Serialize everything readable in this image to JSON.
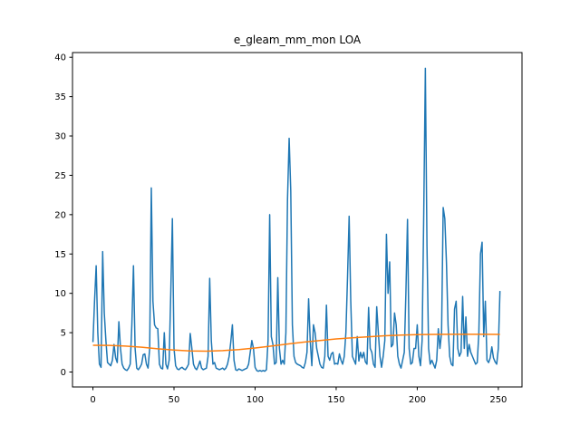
{
  "chart_data": {
    "type": "line",
    "title": "e_gleam_mm_mon LOA",
    "xlabel": "",
    "ylabel": "",
    "xlim": [
      -12.6,
      264.6
    ],
    "ylim": [
      -1.9,
      40.6
    ],
    "xticks": [
      0,
      50,
      100,
      150,
      200,
      250
    ],
    "yticks": [
      0,
      5,
      10,
      15,
      20,
      25,
      30,
      35,
      40
    ],
    "grid": false,
    "series": [
      {
        "color": "#1f77b4",
        "points": [
          [
            0,
            3.8
          ],
          [
            1,
            9
          ],
          [
            2,
            13.5
          ],
          [
            3,
            5
          ],
          [
            4,
            1
          ],
          [
            5,
            0.6
          ],
          [
            6,
            15.3
          ],
          [
            7,
            7.5
          ],
          [
            8,
            4
          ],
          [
            9,
            1.2
          ],
          [
            10,
            1
          ],
          [
            11,
            0.8
          ],
          [
            12,
            1.5
          ],
          [
            13,
            3.5
          ],
          [
            14,
            1.8
          ],
          [
            15,
            1.2
          ],
          [
            16,
            6.4
          ],
          [
            17,
            3
          ],
          [
            18,
            1
          ],
          [
            19,
            0.5
          ],
          [
            20,
            0.3
          ],
          [
            21,
            0.2
          ],
          [
            22,
            0.5
          ],
          [
            23,
            1
          ],
          [
            24,
            6
          ],
          [
            25,
            13.5
          ],
          [
            26,
            3
          ],
          [
            27,
            0.5
          ],
          [
            28,
            0.3
          ],
          [
            29,
            0.6
          ],
          [
            30,
            1
          ],
          [
            31,
            2.2
          ],
          [
            32,
            2.3
          ],
          [
            33,
            1
          ],
          [
            34,
            0.5
          ],
          [
            35,
            3
          ],
          [
            36,
            23.4
          ],
          [
            37,
            9
          ],
          [
            38,
            6
          ],
          [
            39,
            5.6
          ],
          [
            40,
            5.5
          ],
          [
            41,
            1
          ],
          [
            42,
            0.5
          ],
          [
            43,
            0.4
          ],
          [
            44,
            5
          ],
          [
            45,
            1
          ],
          [
            46,
            0.4
          ],
          [
            47,
            1.5
          ],
          [
            48,
            10
          ],
          [
            49,
            19.5
          ],
          [
            50,
            3
          ],
          [
            51,
            0.8
          ],
          [
            52,
            0.4
          ],
          [
            53,
            0.3
          ],
          [
            54,
            0.5
          ],
          [
            55,
            0.6
          ],
          [
            56,
            0.4
          ],
          [
            57,
            0.3
          ],
          [
            58,
            0.6
          ],
          [
            59,
            1
          ],
          [
            60,
            4.9
          ],
          [
            61,
            3
          ],
          [
            62,
            1
          ],
          [
            63,
            0.5
          ],
          [
            64,
            0.3
          ],
          [
            65,
            0.8
          ],
          [
            66,
            1.4
          ],
          [
            67,
            0.5
          ],
          [
            68,
            0.3
          ],
          [
            69,
            0.4
          ],
          [
            70,
            0.5
          ],
          [
            71,
            2
          ],
          [
            72,
            11.9
          ],
          [
            73,
            4
          ],
          [
            74,
            1
          ],
          [
            75,
            1.2
          ],
          [
            76,
            0.5
          ],
          [
            77,
            0.4
          ],
          [
            78,
            0.3
          ],
          [
            79,
            0.4
          ],
          [
            80,
            0.5
          ],
          [
            81,
            0.3
          ],
          [
            82,
            0.5
          ],
          [
            83,
            1
          ],
          [
            84,
            2
          ],
          [
            85,
            3.8
          ],
          [
            86,
            6
          ],
          [
            87,
            1.5
          ],
          [
            88,
            0.3
          ],
          [
            89,
            0.2
          ],
          [
            90,
            0.4
          ],
          [
            91,
            0.3
          ],
          [
            92,
            0.2
          ],
          [
            93,
            0.3
          ],
          [
            94,
            0.4
          ],
          [
            95,
            0.5
          ],
          [
            96,
            1
          ],
          [
            97,
            2.5
          ],
          [
            98,
            4
          ],
          [
            99,
            3
          ],
          [
            100,
            0.6
          ],
          [
            101,
            0.2
          ],
          [
            102,
            0.1
          ],
          [
            103,
            0.2
          ],
          [
            104,
            0.1
          ],
          [
            105,
            0.2
          ],
          [
            106,
            0.1
          ],
          [
            107,
            0.3
          ],
          [
            108,
            4
          ],
          [
            109,
            20
          ],
          [
            110,
            4.5
          ],
          [
            111,
            3.5
          ],
          [
            112,
            1
          ],
          [
            113,
            1.2
          ],
          [
            114,
            12
          ],
          [
            115,
            3
          ],
          [
            116,
            1
          ],
          [
            117,
            1.5
          ],
          [
            118,
            1
          ],
          [
            119,
            5
          ],
          [
            120,
            22
          ],
          [
            121,
            29.7
          ],
          [
            122,
            23
          ],
          [
            123,
            6
          ],
          [
            124,
            2
          ],
          [
            125,
            1.2
          ],
          [
            126,
            1
          ],
          [
            127,
            0.9
          ],
          [
            128,
            0.8
          ],
          [
            129,
            0.6
          ],
          [
            130,
            0.5
          ],
          [
            131,
            1.2
          ],
          [
            132,
            2.5
          ],
          [
            133,
            9.3
          ],
          [
            134,
            4
          ],
          [
            135,
            0.8
          ],
          [
            136,
            6
          ],
          [
            137,
            5
          ],
          [
            138,
            3
          ],
          [
            139,
            2
          ],
          [
            140,
            1
          ],
          [
            141,
            0.6
          ],
          [
            142,
            0.5
          ],
          [
            143,
            2
          ],
          [
            144,
            8.5
          ],
          [
            145,
            2
          ],
          [
            146,
            1.5
          ],
          [
            147,
            2.3
          ],
          [
            148,
            2.5
          ],
          [
            149,
            1
          ],
          [
            150,
            1.1
          ],
          [
            151,
            1
          ],
          [
            152,
            2.3
          ],
          [
            153,
            1.5
          ],
          [
            154,
            1
          ],
          [
            155,
            2
          ],
          [
            156,
            5
          ],
          [
            157,
            12
          ],
          [
            158,
            19.8
          ],
          [
            159,
            9
          ],
          [
            160,
            2
          ],
          [
            161,
            1.5
          ],
          [
            162,
            1
          ],
          [
            163,
            4.5
          ],
          [
            164,
            1.4
          ],
          [
            165,
            2.5
          ],
          [
            166,
            1.8
          ],
          [
            167,
            2.5
          ],
          [
            168,
            1.3
          ],
          [
            169,
            1
          ],
          [
            170,
            8.2
          ],
          [
            171,
            3
          ],
          [
            172,
            2.5
          ],
          [
            173,
            1
          ],
          [
            174,
            0.6
          ],
          [
            175,
            8.3
          ],
          [
            176,
            5
          ],
          [
            177,
            2
          ],
          [
            178,
            0.6
          ],
          [
            179,
            2
          ],
          [
            180,
            4
          ],
          [
            181,
            17.5
          ],
          [
            182,
            10
          ],
          [
            183,
            14
          ],
          [
            184,
            3.2
          ],
          [
            185,
            3.5
          ],
          [
            186,
            7.5
          ],
          [
            187,
            6
          ],
          [
            188,
            2
          ],
          [
            189,
            1
          ],
          [
            190,
            0.5
          ],
          [
            191,
            1.5
          ],
          [
            192,
            2.5
          ],
          [
            193,
            10
          ],
          [
            194,
            19.4
          ],
          [
            195,
            3
          ],
          [
            196,
            1
          ],
          [
            197,
            1.2
          ],
          [
            198,
            3
          ],
          [
            199,
            3
          ],
          [
            200,
            6
          ],
          [
            201,
            2
          ],
          [
            202,
            0.8
          ],
          [
            203,
            4
          ],
          [
            204,
            20
          ],
          [
            205,
            38.6
          ],
          [
            206,
            16
          ],
          [
            207,
            3
          ],
          [
            208,
            1
          ],
          [
            209,
            1.5
          ],
          [
            210,
            1
          ],
          [
            211,
            0.5
          ],
          [
            212,
            1.5
          ],
          [
            213,
            5.5
          ],
          [
            214,
            3
          ],
          [
            215,
            5
          ],
          [
            216,
            20.9
          ],
          [
            217,
            19.5
          ],
          [
            218,
            14
          ],
          [
            219,
            6
          ],
          [
            220,
            2
          ],
          [
            221,
            1
          ],
          [
            222,
            0.8
          ],
          [
            223,
            8
          ],
          [
            224,
            9
          ],
          [
            225,
            3
          ],
          [
            226,
            2
          ],
          [
            227,
            2.5
          ],
          [
            228,
            9.6
          ],
          [
            229,
            3
          ],
          [
            230,
            7
          ],
          [
            231,
            2
          ],
          [
            232,
            3.5
          ],
          [
            233,
            2.5
          ],
          [
            234,
            2
          ],
          [
            235,
            1.5
          ],
          [
            236,
            1
          ],
          [
            237,
            1.2
          ],
          [
            238,
            5
          ],
          [
            239,
            15
          ],
          [
            240,
            16.5
          ],
          [
            241,
            4.5
          ],
          [
            242,
            9
          ],
          [
            243,
            1.5
          ],
          [
            244,
            1.2
          ],
          [
            245,
            1.8
          ],
          [
            246,
            3.2
          ],
          [
            247,
            1.8
          ],
          [
            248,
            1.3
          ],
          [
            249,
            1
          ],
          [
            250,
            3
          ],
          [
            251,
            10.3
          ]
        ]
      },
      {
        "color": "#ff7f0e",
        "points": [
          [
            0,
            3.4
          ],
          [
            10,
            3.38
          ],
          [
            20,
            3.3
          ],
          [
            30,
            3.15
          ],
          [
            40,
            2.95
          ],
          [
            50,
            2.8
          ],
          [
            60,
            2.68
          ],
          [
            70,
            2.65
          ],
          [
            80,
            2.72
          ],
          [
            90,
            2.85
          ],
          [
            100,
            3.05
          ],
          [
            110,
            3.3
          ],
          [
            120,
            3.55
          ],
          [
            130,
            3.8
          ],
          [
            140,
            4.0
          ],
          [
            150,
            4.2
          ],
          [
            160,
            4.35
          ],
          [
            170,
            4.48
          ],
          [
            180,
            4.6
          ],
          [
            190,
            4.7
          ],
          [
            200,
            4.75
          ],
          [
            210,
            4.78
          ],
          [
            220,
            4.8
          ],
          [
            230,
            4.8
          ],
          [
            240,
            4.8
          ],
          [
            251,
            4.78
          ]
        ]
      }
    ]
  }
}
